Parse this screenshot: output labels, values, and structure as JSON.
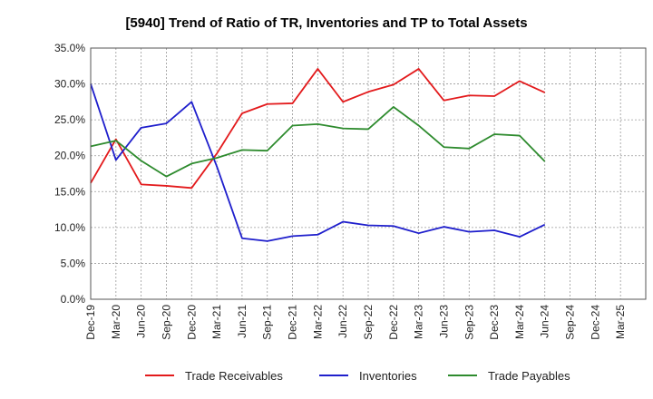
{
  "chart_data": {
    "type": "line",
    "title": "[5940]  Trend of Ratio of TR, Inventories and TP to Total Assets",
    "xlabel": "",
    "ylabel": "",
    "ylim": [
      0,
      35
    ],
    "y_ticks": [
      "0.0%",
      "5.0%",
      "10.0%",
      "15.0%",
      "20.0%",
      "25.0%",
      "30.0%",
      "35.0%"
    ],
    "categories": [
      "Dec-19",
      "Mar-20",
      "Jun-20",
      "Sep-20",
      "Dec-20",
      "Mar-21",
      "Jun-21",
      "Sep-21",
      "Dec-21",
      "Mar-22",
      "Jun-22",
      "Sep-22",
      "Dec-22",
      "Mar-23",
      "Jun-23",
      "Sep-23",
      "Dec-23",
      "Mar-24",
      "Jun-24",
      "Sep-24",
      "Dec-24",
      "Mar-25"
    ],
    "grid": true,
    "legend_position": "bottom",
    "series": [
      {
        "name": "Trade Receivables",
        "color": "#e31a1c",
        "values": [
          16.2,
          22.3,
          16.0,
          15.8,
          15.5,
          20.3,
          25.9,
          27.2,
          27.3,
          32.1,
          27.5,
          28.9,
          29.9,
          32.1,
          27.7,
          28.4,
          28.3,
          30.4,
          28.8,
          null,
          null,
          null
        ]
      },
      {
        "name": "Inventories",
        "color": "#1f1fcc",
        "values": [
          30.0,
          19.4,
          23.9,
          24.5,
          27.5,
          18.5,
          8.5,
          8.1,
          8.8,
          9.0,
          10.8,
          10.3,
          10.2,
          9.2,
          10.1,
          9.4,
          9.6,
          8.7,
          10.4,
          null,
          null,
          null
        ]
      },
      {
        "name": "Trade Payables",
        "color": "#2e8b2e",
        "values": [
          21.3,
          22.1,
          19.3,
          17.1,
          18.9,
          19.7,
          20.8,
          20.7,
          24.2,
          24.4,
          23.8,
          23.7,
          26.8,
          24.2,
          21.2,
          21.0,
          23.0,
          22.8,
          19.2,
          null,
          null,
          null
        ]
      }
    ]
  }
}
